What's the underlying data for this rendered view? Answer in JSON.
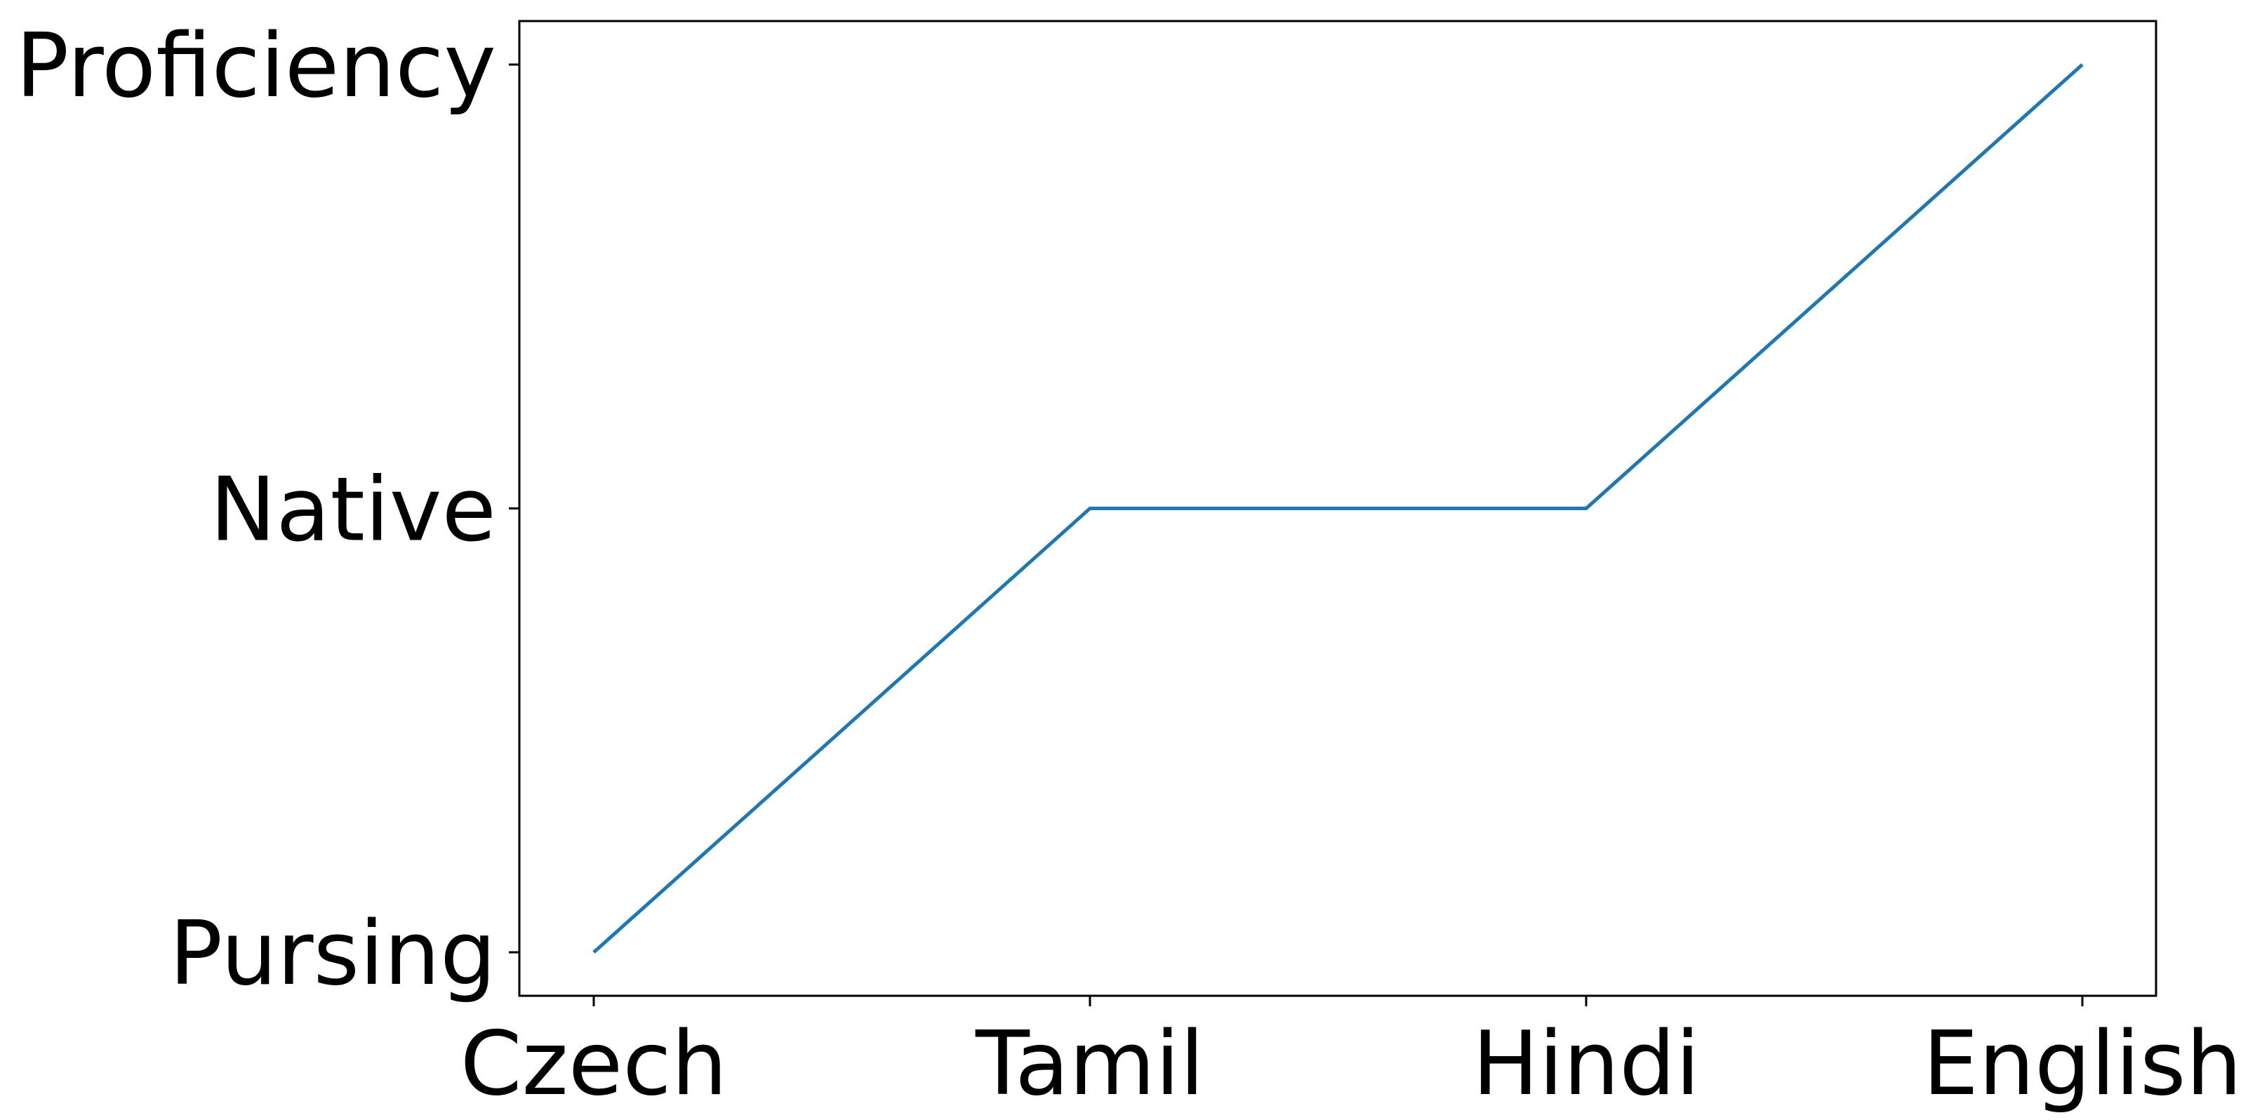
{
  "chart_data": {
    "type": "line",
    "title": "",
    "xlabel": "",
    "ylabel": "",
    "categories": [
      "Czech",
      "Tamil",
      "Hindi",
      "English"
    ],
    "y_categories": [
      "Pursing",
      "Native",
      "Proficiency"
    ],
    "series": [
      {
        "values": [
          "Pursing",
          "Native",
          "Native",
          "Proficiency"
        ],
        "color": "#1f77b4"
      }
    ],
    "grid": false,
    "legend": "none"
  }
}
